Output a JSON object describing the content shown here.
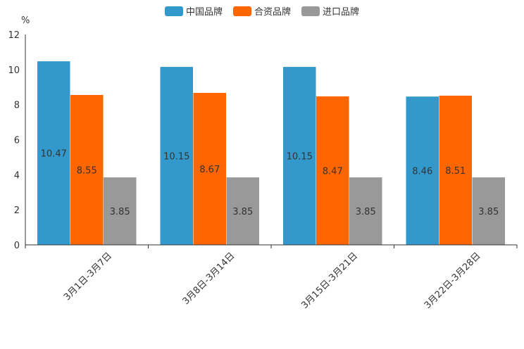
{
  "chart_data": {
    "type": "bar",
    "title": "",
    "ylabel": "%",
    "xlabel": "",
    "ylim": [
      0,
      12
    ],
    "yticks": [
      0,
      2,
      4,
      6,
      8,
      10,
      12
    ],
    "grid": false,
    "legend_position": "top-center",
    "categories": [
      "3月1日-3月7日",
      "3月8日-3月14日",
      "3月15日-3月21日",
      "3月22日-3月28日"
    ],
    "series": [
      {
        "name": "中国品牌",
        "color": "#3399cc",
        "values": [
          10.47,
          10.15,
          10.15,
          8.46
        ]
      },
      {
        "name": "合资品牌",
        "color": "#ff6600",
        "values": [
          8.55,
          8.67,
          8.47,
          8.51
        ]
      },
      {
        "name": "进口品牌",
        "color": "#999999",
        "values": [
          3.85,
          3.85,
          3.85,
          3.85
        ]
      }
    ]
  }
}
